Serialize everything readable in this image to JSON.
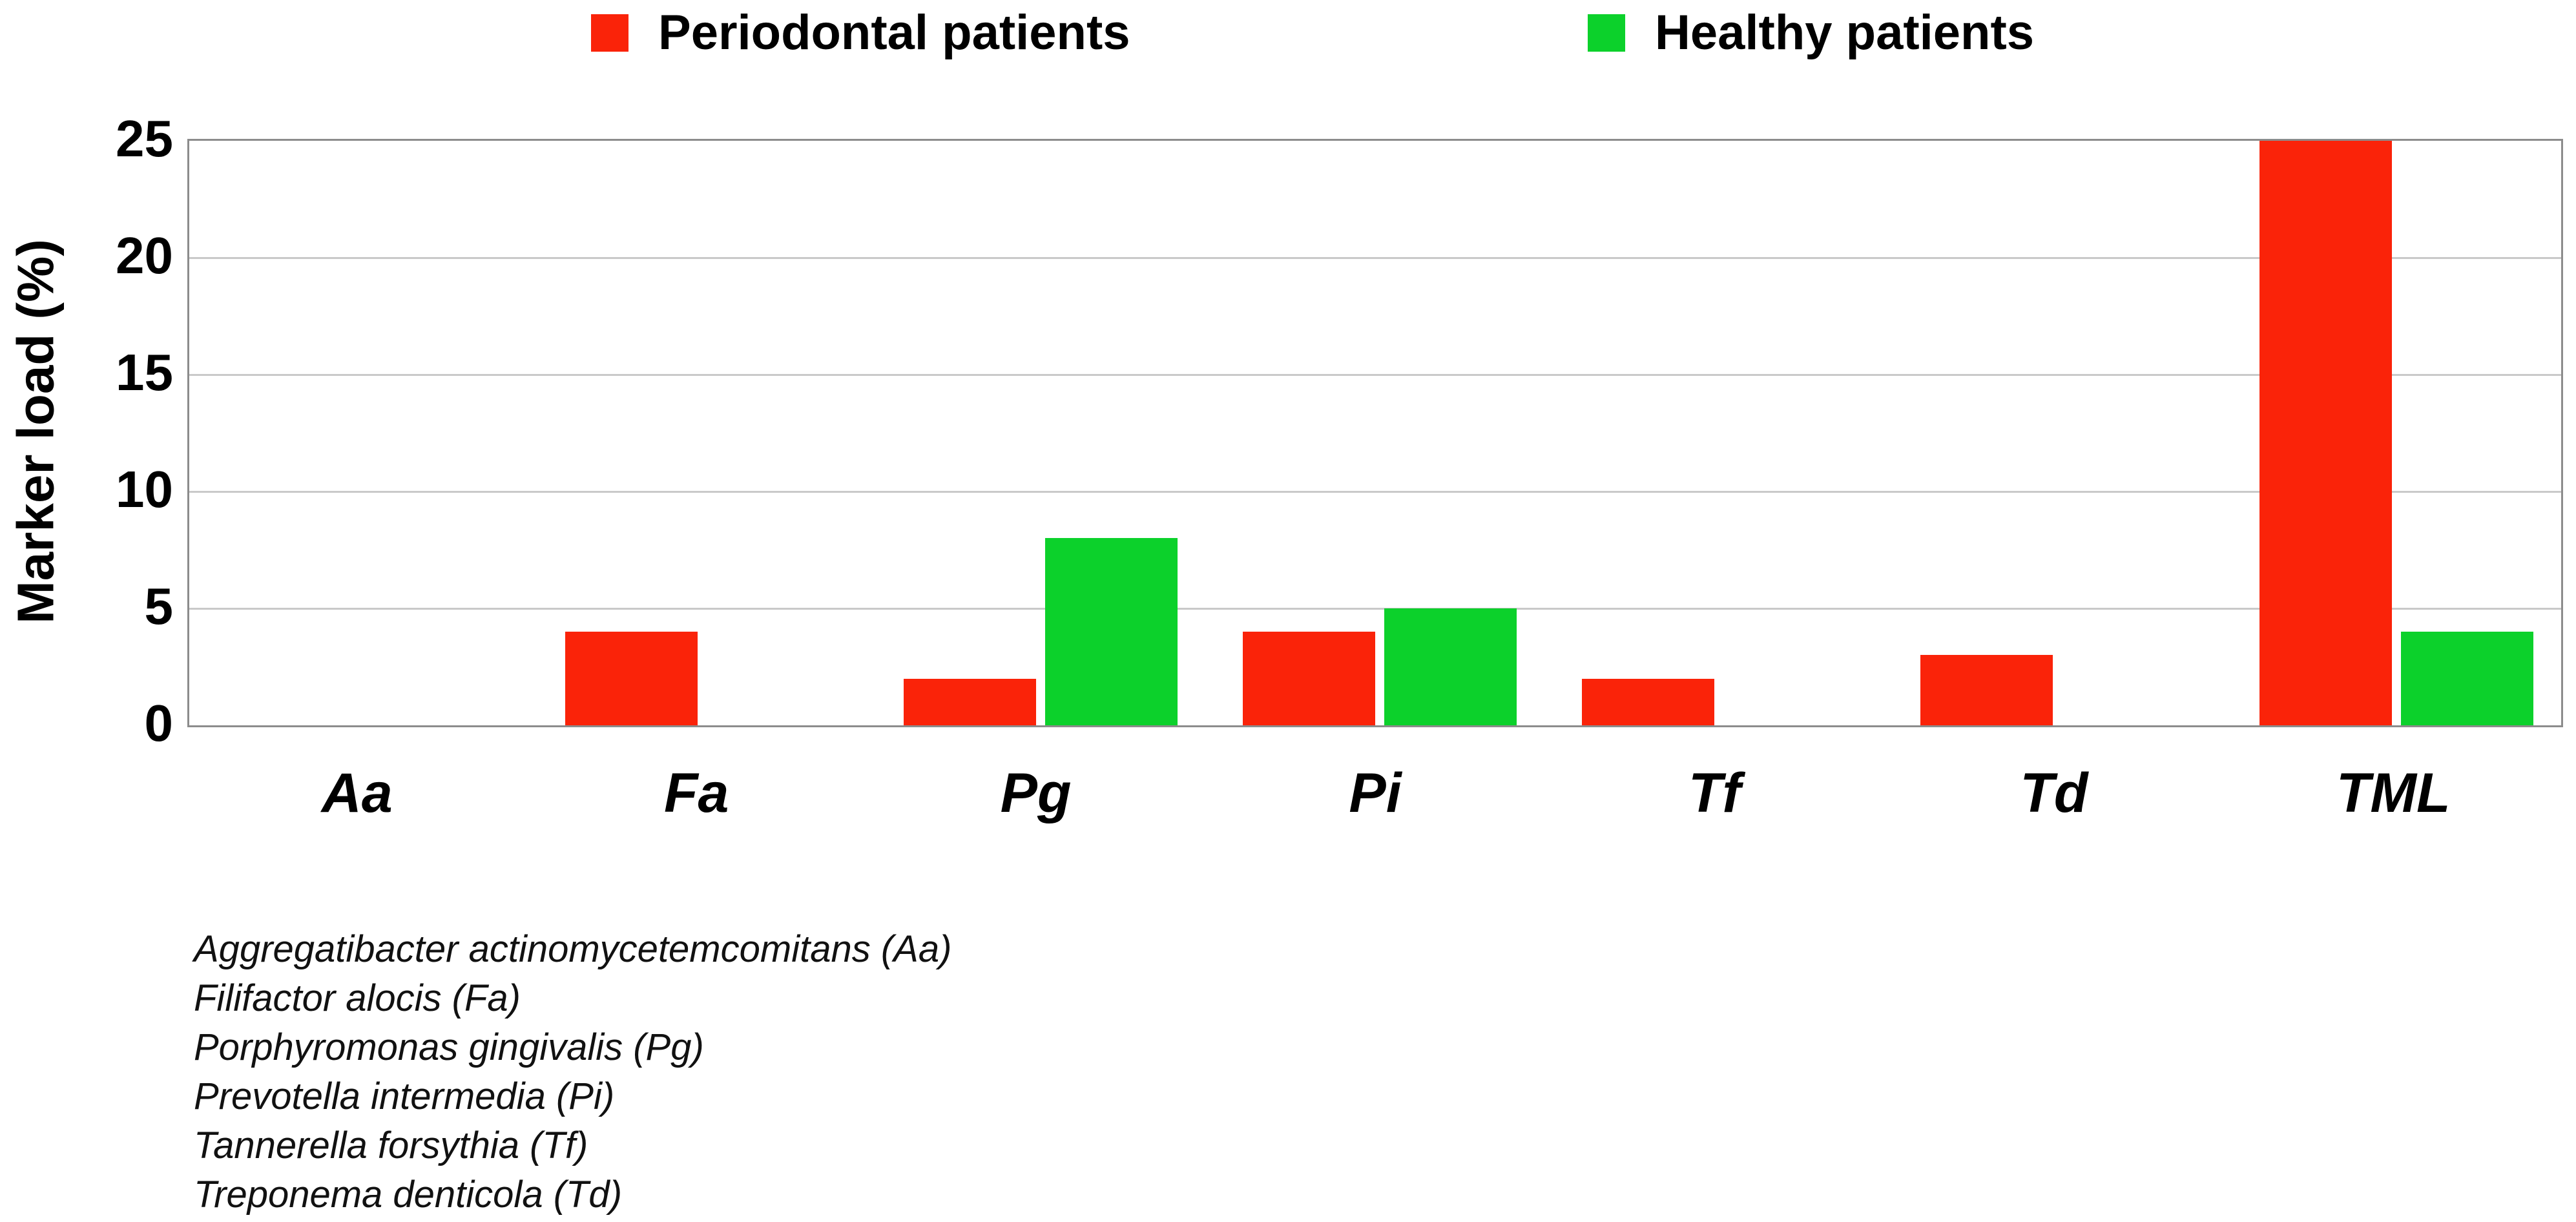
{
  "legend": {
    "items": [
      {
        "label": "Periodontal patients",
        "color": "#fa2309"
      },
      {
        "label": "Healthy patients",
        "color": "#0cd12b"
      }
    ]
  },
  "chart_data": {
    "type": "bar",
    "categories": [
      "Aa",
      "Fa",
      "Pg",
      "Pi",
      "Tf",
      "Td",
      "TML"
    ],
    "series": [
      {
        "name": "Periodontal patients",
        "color": "#fa2309",
        "values": [
          0,
          4,
          2,
          4,
          2,
          3,
          25
        ]
      },
      {
        "name": "Healthy patients",
        "color": "#0cd12b",
        "values": [
          0,
          0,
          8,
          5,
          0,
          0,
          4
        ]
      }
    ],
    "title": "",
    "xlabel": "",
    "ylabel": "Marker load (%)",
    "ylim": [
      0,
      25
    ],
    "yticks": [
      0,
      5,
      10,
      15,
      20,
      25
    ],
    "grid": true,
    "legend_position": "top"
  },
  "footnotes": [
    "Aggregatibacter actinomycetemcomitans (Aa)",
    "Filifactor alocis (Fa)",
    "Porphyromonas gingivalis (Pg)",
    "Prevotella intermedia (Pi)",
    "Tannerella forsythia (Tf)",
    "Treponema denticola (Td)"
  ],
  "colors": {
    "periodontal": "#fa2309",
    "healthy": "#0cd12b",
    "gridline": "#c9c9c9",
    "axis_border": "#8c8c8c",
    "text": "#000000"
  }
}
